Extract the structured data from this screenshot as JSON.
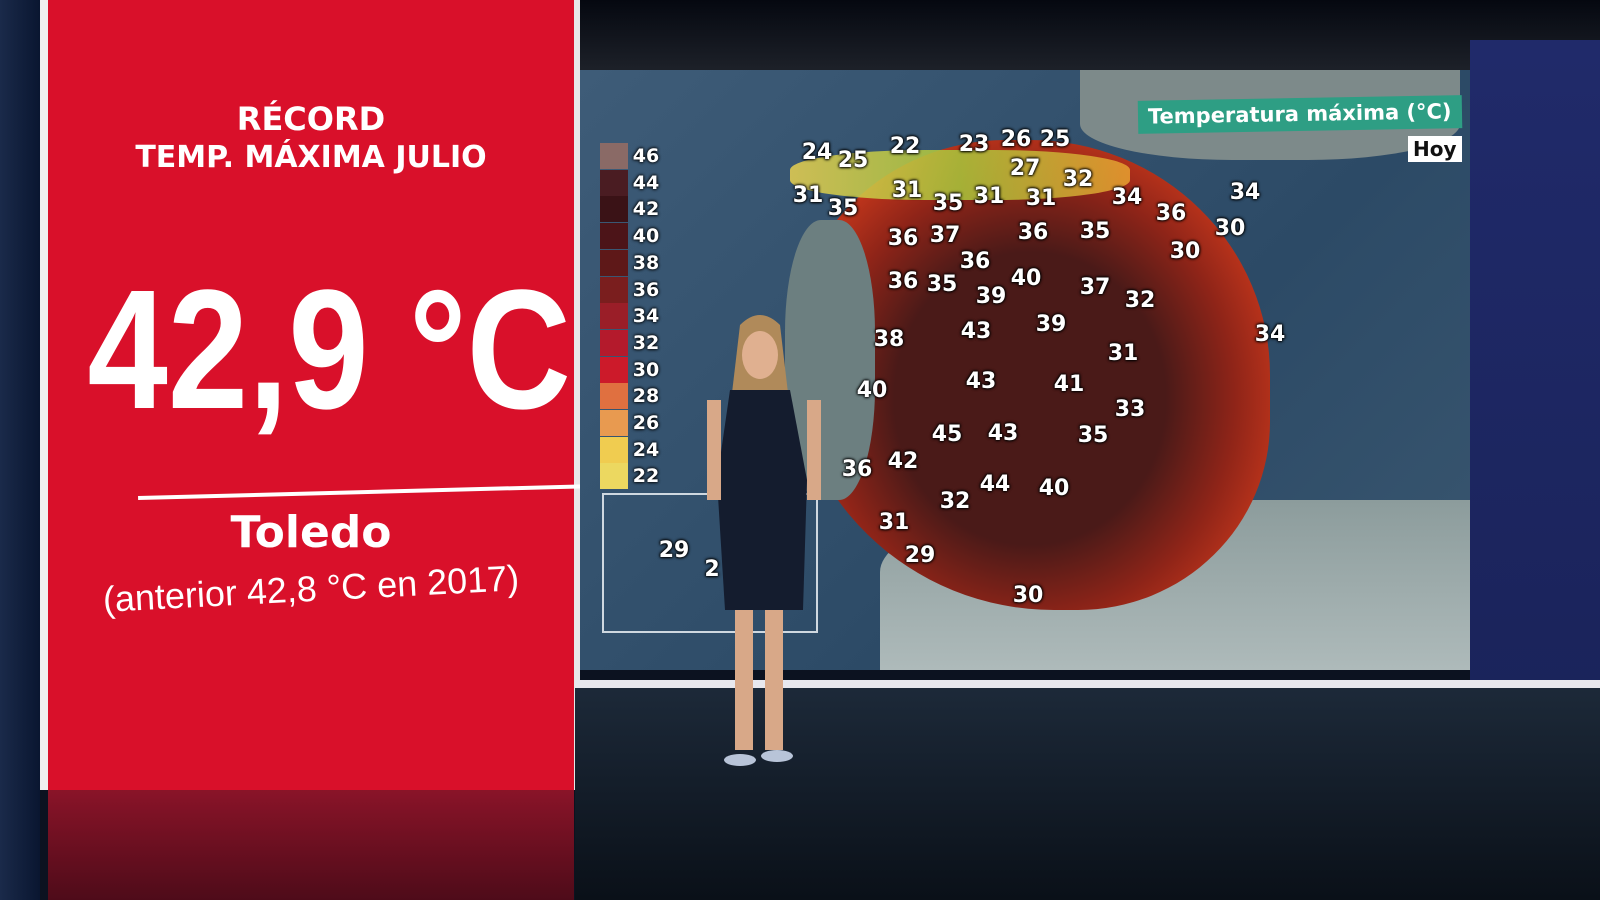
{
  "record_panel": {
    "title_line1": "RÉCORD",
    "title_line2": "TEMP. MÁXIMA JULIO",
    "value": "42,9 °C",
    "city": "Toledo",
    "previous": "(anterior 42,8 °C en 2017)",
    "color": "#d9102a"
  },
  "map": {
    "title": "Temperatura máxima (°C)",
    "day": "Hoy",
    "legend": [
      {
        "value": "46",
        "color": "#8a6a66"
      },
      {
        "value": "44",
        "color": "#4a1c22"
      },
      {
        "value": "42",
        "color": "#3a1216"
      },
      {
        "value": "40",
        "color": "#4c1418"
      },
      {
        "value": "38",
        "color": "#5e1818"
      },
      {
        "value": "36",
        "color": "#7a1e1e"
      },
      {
        "value": "34",
        "color": "#9a1e28"
      },
      {
        "value": "32",
        "color": "#b41a2c"
      },
      {
        "value": "30",
        "color": "#cc1a2a"
      },
      {
        "value": "28",
        "color": "#e07040"
      },
      {
        "value": "26",
        "color": "#e89a50"
      },
      {
        "value": "24",
        "color": "#f0cc50"
      },
      {
        "value": "22",
        "color": "#ecd860"
      }
    ],
    "temperatures": [
      "24",
      "25",
      "22",
      "23",
      "26",
      "25",
      "27",
      "31",
      "35",
      "31",
      "35",
      "31",
      "31",
      "32",
      "34",
      "36",
      "34",
      "30",
      "30",
      "36",
      "37",
      "36",
      "35",
      "36",
      "40",
      "37",
      "32",
      "36",
      "35",
      "39",
      "38",
      "43",
      "39",
      "31",
      "34",
      "40",
      "43",
      "41",
      "33",
      "45",
      "43",
      "35",
      "36",
      "42",
      "44",
      "40",
      "32",
      "31",
      "29",
      "30",
      "29",
      "2"
    ]
  }
}
